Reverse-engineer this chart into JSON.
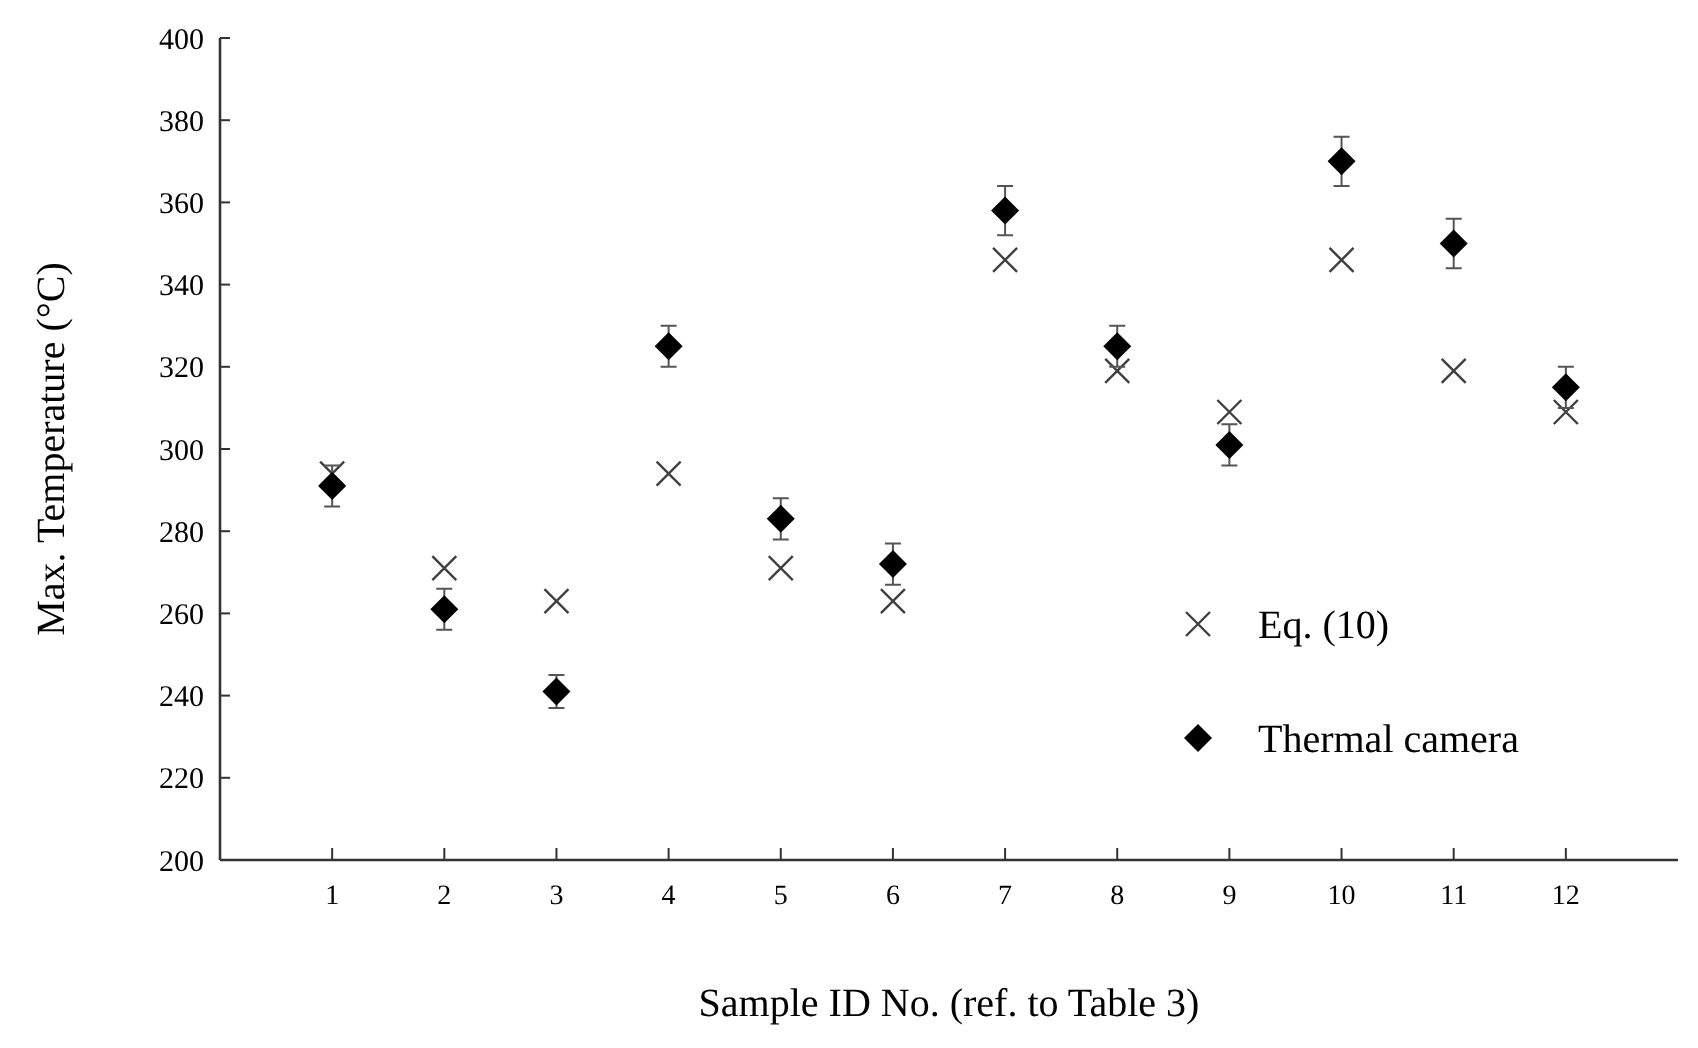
{
  "chart_data": {
    "type": "scatter",
    "xlabel": "Sample ID No. (ref. to Table 3)",
    "ylabel": "Max. Temperature (°C)",
    "x": [
      1,
      2,
      3,
      4,
      5,
      6,
      7,
      8,
      9,
      10,
      11,
      12
    ],
    "xlim": [
      0,
      13
    ],
    "xticks": [
      1,
      2,
      3,
      4,
      5,
      6,
      7,
      8,
      9,
      10,
      11,
      12
    ],
    "ylim": [
      200,
      400
    ],
    "yticks": [
      200,
      220,
      240,
      260,
      280,
      300,
      320,
      340,
      360,
      380,
      400
    ],
    "grid": false,
    "legend": "right",
    "series": [
      {
        "name": "Eq. (10)",
        "color": "#404040",
        "marker": "cross",
        "values": [
          294,
          271,
          263,
          294,
          271,
          263,
          346,
          319,
          309,
          346,
          319,
          309
        ]
      },
      {
        "name": "Thermal camera",
        "color": "#000000",
        "marker": "diamond",
        "values": [
          291,
          261,
          241,
          325,
          283,
          272,
          358,
          325,
          301,
          370,
          350,
          315
        ],
        "errors": [
          5,
          5,
          4,
          5,
          5,
          5,
          6,
          5,
          5,
          6,
          6,
          5
        ]
      }
    ]
  }
}
